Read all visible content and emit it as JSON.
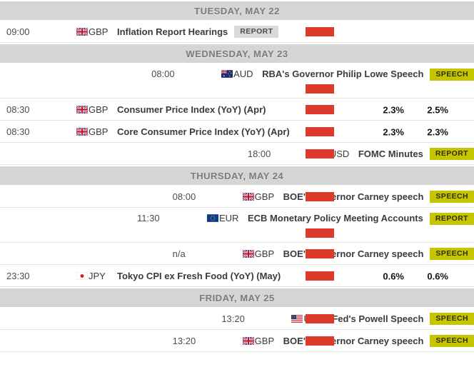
{
  "colors": {
    "highlight": "#feff00",
    "volatility_bar": "#dc3b2b",
    "header_bg": "#d5d5d5",
    "badge_bg": "#d9d9d9",
    "badge_bg_highlight": "#c6c600"
  },
  "calendar": {
    "days": [
      {
        "header": "TUESDAY, MAY 22",
        "events": [
          {
            "time": "09:00",
            "currency": "GBP",
            "flag": "gbp-flag-icon",
            "title": "Inflation Report Hearings",
            "badge": "REPORT",
            "highlighted": false,
            "bar_on_second_line": false,
            "volatility_bar": true,
            "consensus": "",
            "previous": ""
          }
        ]
      },
      {
        "header": "WEDNESDAY, MAY 23",
        "events": [
          {
            "time": "08:00",
            "currency": "AUD",
            "flag": "aud-flag-icon",
            "title": "RBA's Governor Philip Lowe Speech",
            "badge": "SPEECH",
            "highlighted": true,
            "bar_on_second_line": true,
            "volatility_bar": true,
            "consensus": "",
            "previous": ""
          },
          {
            "time": "08:30",
            "currency": "GBP",
            "flag": "gbp-flag-icon",
            "title": "Consumer Price Index (YoY) (Apr)",
            "badge": null,
            "highlighted": false,
            "bar_on_second_line": false,
            "volatility_bar": true,
            "consensus": "2.3%",
            "previous": "2.5%"
          },
          {
            "time": "08:30",
            "currency": "GBP",
            "flag": "gbp-flag-icon",
            "title": "Core Consumer Price Index (YoY) (Apr)",
            "badge": null,
            "highlighted": false,
            "bar_on_second_line": false,
            "volatility_bar": true,
            "consensus": "2.3%",
            "previous": "2.3%"
          },
          {
            "time": "18:00",
            "currency": "USD",
            "flag": "usd-flag-icon",
            "title": "FOMC Minutes",
            "badge": "REPORT",
            "highlighted": true,
            "bar_on_second_line": false,
            "volatility_bar": true,
            "consensus": "",
            "previous": ""
          }
        ]
      },
      {
        "header": "THURSDAY, MAY 24",
        "events": [
          {
            "time": "08:00",
            "currency": "GBP",
            "flag": "gbp-flag-icon",
            "title": "BOE's Governor Carney speech",
            "badge": "SPEECH",
            "highlighted": true,
            "bar_on_second_line": false,
            "volatility_bar": true,
            "consensus": "",
            "previous": ""
          },
          {
            "time": "11:30",
            "currency": "EUR",
            "flag": "eur-flag-icon",
            "title": "ECB Monetary Policy Meeting Accounts",
            "badge": "REPORT",
            "highlighted": true,
            "bar_on_second_line": true,
            "volatility_bar": true,
            "consensus": "",
            "previous": ""
          },
          {
            "time": "n/a",
            "currency": "GBP",
            "flag": "gbp-flag-icon",
            "title": "BOE's Governor Carney speech",
            "badge": "SPEECH",
            "highlighted": true,
            "bar_on_second_line": false,
            "volatility_bar": true,
            "consensus": "",
            "previous": ""
          },
          {
            "time": "23:30",
            "currency": "JPY",
            "flag": "jpy-flag-icon",
            "title": "Tokyo CPI ex Fresh Food (YoY) (May)",
            "badge": null,
            "highlighted": false,
            "bar_on_second_line": false,
            "volatility_bar": true,
            "consensus": "0.6%",
            "previous": "0.6%"
          }
        ]
      },
      {
        "header": "FRIDAY, MAY 25",
        "events": [
          {
            "time": "13:20",
            "currency": "USD",
            "flag": "usd-flag-icon",
            "title": "Fed's Powell Speech",
            "badge": "SPEECH",
            "highlighted": true,
            "bar_on_second_line": false,
            "volatility_bar": true,
            "consensus": "",
            "previous": ""
          },
          {
            "time": "13:20",
            "currency": "GBP",
            "flag": "gbp-flag-icon",
            "title": "BOE's Governor Carney speech",
            "badge": "SPEECH",
            "highlighted": true,
            "bar_on_second_line": false,
            "volatility_bar": true,
            "consensus": "",
            "previous": ""
          }
        ]
      }
    ]
  }
}
